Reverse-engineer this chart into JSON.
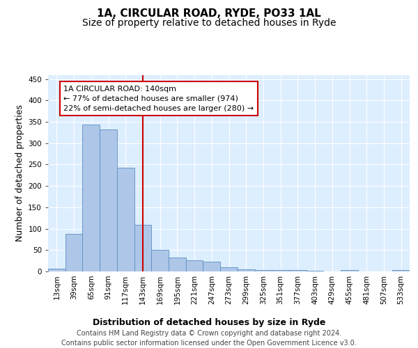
{
  "title1": "1A, CIRCULAR ROAD, RYDE, PO33 1AL",
  "title2": "Size of property relative to detached houses in Ryde",
  "xlabel": "Distribution of detached houses by size in Ryde",
  "ylabel": "Number of detached properties",
  "bar_color": "#aec6e8",
  "bar_edge_color": "#5a8fc0",
  "background_color": "#ddeeff",
  "grid_color": "#ffffff",
  "annotation_line_color": "#cc0000",
  "annotation_box_color": "#cc0000",
  "annotation_text": "1A CIRCULAR ROAD: 140sqm\n← 77% of detached houses are smaller (974)\n22% of semi-detached houses are larger (280) →",
  "categories": [
    "13sqm",
    "39sqm",
    "65sqm",
    "91sqm",
    "117sqm",
    "143sqm",
    "169sqm",
    "195sqm",
    "221sqm",
    "247sqm",
    "273sqm",
    "299sqm",
    "325sqm",
    "351sqm",
    "377sqm",
    "403sqm",
    "429sqm",
    "455sqm",
    "481sqm",
    "507sqm",
    "533sqm"
  ],
  "values": [
    7,
    88,
    343,
    332,
    243,
    109,
    50,
    32,
    26,
    22,
    10,
    5,
    3,
    4,
    3,
    1,
    0,
    4,
    0,
    0,
    3
  ],
  "ylim": [
    0,
    460
  ],
  "yticks": [
    0,
    50,
    100,
    150,
    200,
    250,
    300,
    350,
    400,
    450
  ],
  "footer": "Contains HM Land Registry data © Crown copyright and database right 2024.\nContains public sector information licensed under the Open Government Licence v3.0.",
  "title1_fontsize": 11,
  "title2_fontsize": 10,
  "tick_fontsize": 7.5,
  "ylabel_fontsize": 9,
  "xlabel_fontsize": 9,
  "footer_fontsize": 7
}
